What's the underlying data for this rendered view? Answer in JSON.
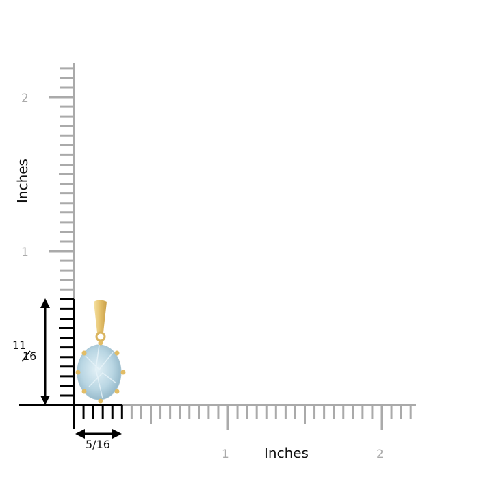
{
  "ruler": {
    "vertical_axis_label": "Inches",
    "horizontal_axis_label": "Inches",
    "vertical_ticks": [
      "1",
      "2"
    ],
    "horizontal_ticks": [
      "1",
      "2"
    ],
    "height_dimension": {
      "numerator": "11",
      "denominator": "16"
    },
    "width_dimension": "5/16",
    "colors": {
      "ruler_gray": "#aaaaaa",
      "dimension_black": "#000000",
      "gem": "#bcd9e6",
      "metal": "#e8c873"
    }
  },
  "product": {
    "type": "oval aquamarine pendant",
    "metal": "yellow gold"
  }
}
